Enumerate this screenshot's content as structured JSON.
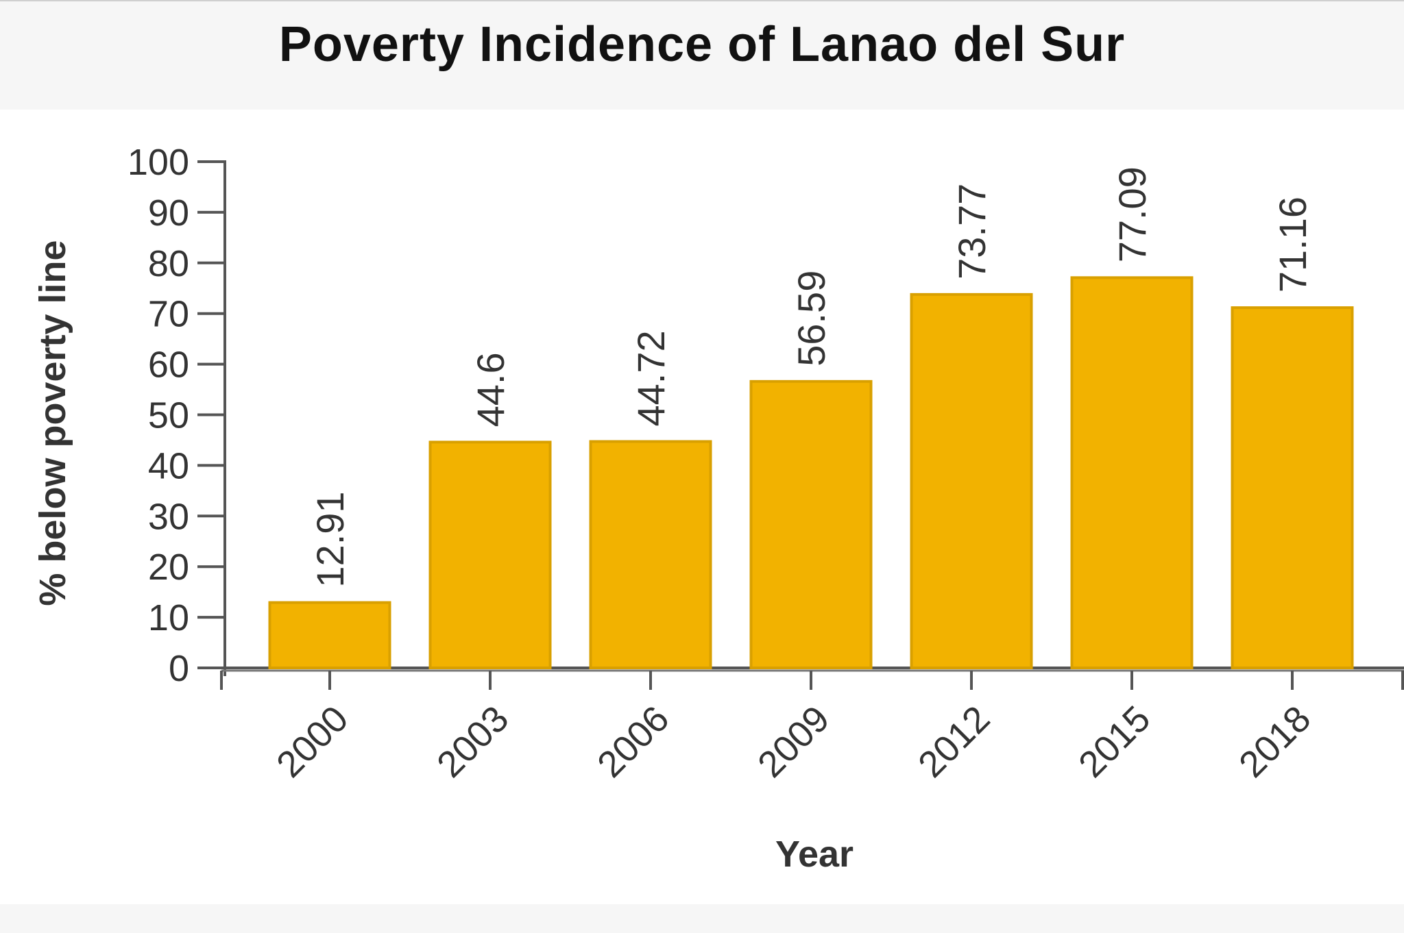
{
  "chart_data": {
    "type": "bar",
    "title": "Poverty Incidence of Lanao del Sur",
    "xlabel": "Year",
    "ylabel": "% below poverty line",
    "categories": [
      "2000",
      "2003",
      "2006",
      "2009",
      "2012",
      "2015",
      "2018"
    ],
    "values": [
      12.91,
      44.6,
      44.72,
      56.59,
      73.77,
      77.09,
      71.16
    ],
    "data_labels": [
      "12.91",
      "44.6",
      "44.72",
      "56.59",
      "73.77",
      "77.09",
      "71.16"
    ],
    "ylim": [
      0,
      100
    ],
    "yticks": [
      0,
      10,
      20,
      30,
      40,
      50,
      60,
      70,
      80,
      90,
      100
    ],
    "grid": false,
    "legend": "none",
    "bar_color": "#f2b200"
  }
}
